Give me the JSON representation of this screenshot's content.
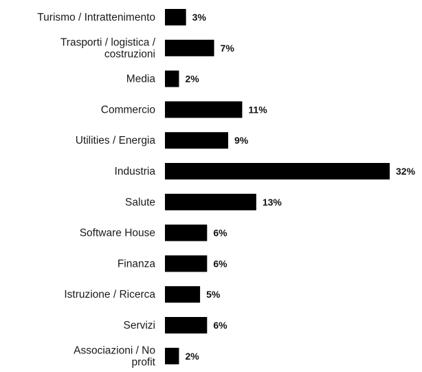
{
  "chart_data": {
    "type": "bar",
    "orientation": "horizontal",
    "title": "",
    "xlabel": "",
    "ylabel": "",
    "categories": [
      "Turismo / Intrattenimento",
      "Trasporti / logistica / costruzioni",
      "Media",
      "Commercio",
      "Utilities / Energia",
      "Industria",
      "Salute",
      "Software House",
      "Finanza",
      "Istruzione / Ricerca",
      "Servizi",
      "Associazioni / No profit"
    ],
    "category_lines": [
      [
        "Turismo / Intrattenimento"
      ],
      [
        "Trasporti / logistica /",
        "costruzioni"
      ],
      [
        "Media"
      ],
      [
        "Commercio"
      ],
      [
        "Utilities / Energia"
      ],
      [
        "Industria"
      ],
      [
        "Salute"
      ],
      [
        "Software House"
      ],
      [
        "Finanza"
      ],
      [
        "Istruzione / Ricerca"
      ],
      [
        "Servizi"
      ],
      [
        "Associazioni / No",
        "profit"
      ]
    ],
    "values": [
      3,
      7,
      2,
      11,
      9,
      32,
      13,
      6,
      6,
      5,
      6,
      2
    ],
    "value_labels": [
      "3%",
      "7%",
      "2%",
      "11%",
      "9%",
      "32%",
      "13%",
      "6%",
      "6%",
      "5%",
      "6%",
      "2%"
    ],
    "unit": "%",
    "xlim": [
      0,
      32
    ],
    "grid": false,
    "legend": "none",
    "bar_color": "#000000"
  }
}
